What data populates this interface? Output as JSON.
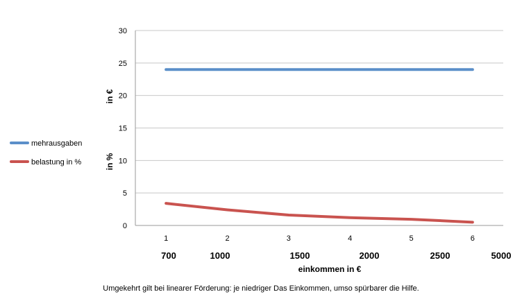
{
  "chart_data": {
    "type": "line",
    "x": [
      1,
      2,
      3,
      4,
      5,
      6
    ],
    "ylim": [
      0,
      30
    ],
    "yticks": [
      0,
      5,
      10,
      15,
      20,
      25,
      30
    ],
    "ylabel_upper": "in €",
    "ylabel_lower": "in %",
    "xlabel": "einkommen in €",
    "income_labels": [
      "700",
      "1000",
      "1500",
      "2000",
      "2500",
      "5000"
    ],
    "legend_position": "left",
    "grid": true,
    "series": [
      {
        "name": "mehrausgaben",
        "color": "#5b8fc9",
        "values": [
          24,
          24,
          24,
          24,
          24,
          24
        ]
      },
      {
        "name": "belastung in %",
        "color": "#c9534f",
        "values": [
          3.4,
          2.4,
          1.6,
          1.2,
          0.95,
          0.5
        ]
      }
    ]
  },
  "caption": "Umgekehrt gilt bei linearer Förderung: je niedriger Das Einkommen, umso spürbarer die Hilfe."
}
